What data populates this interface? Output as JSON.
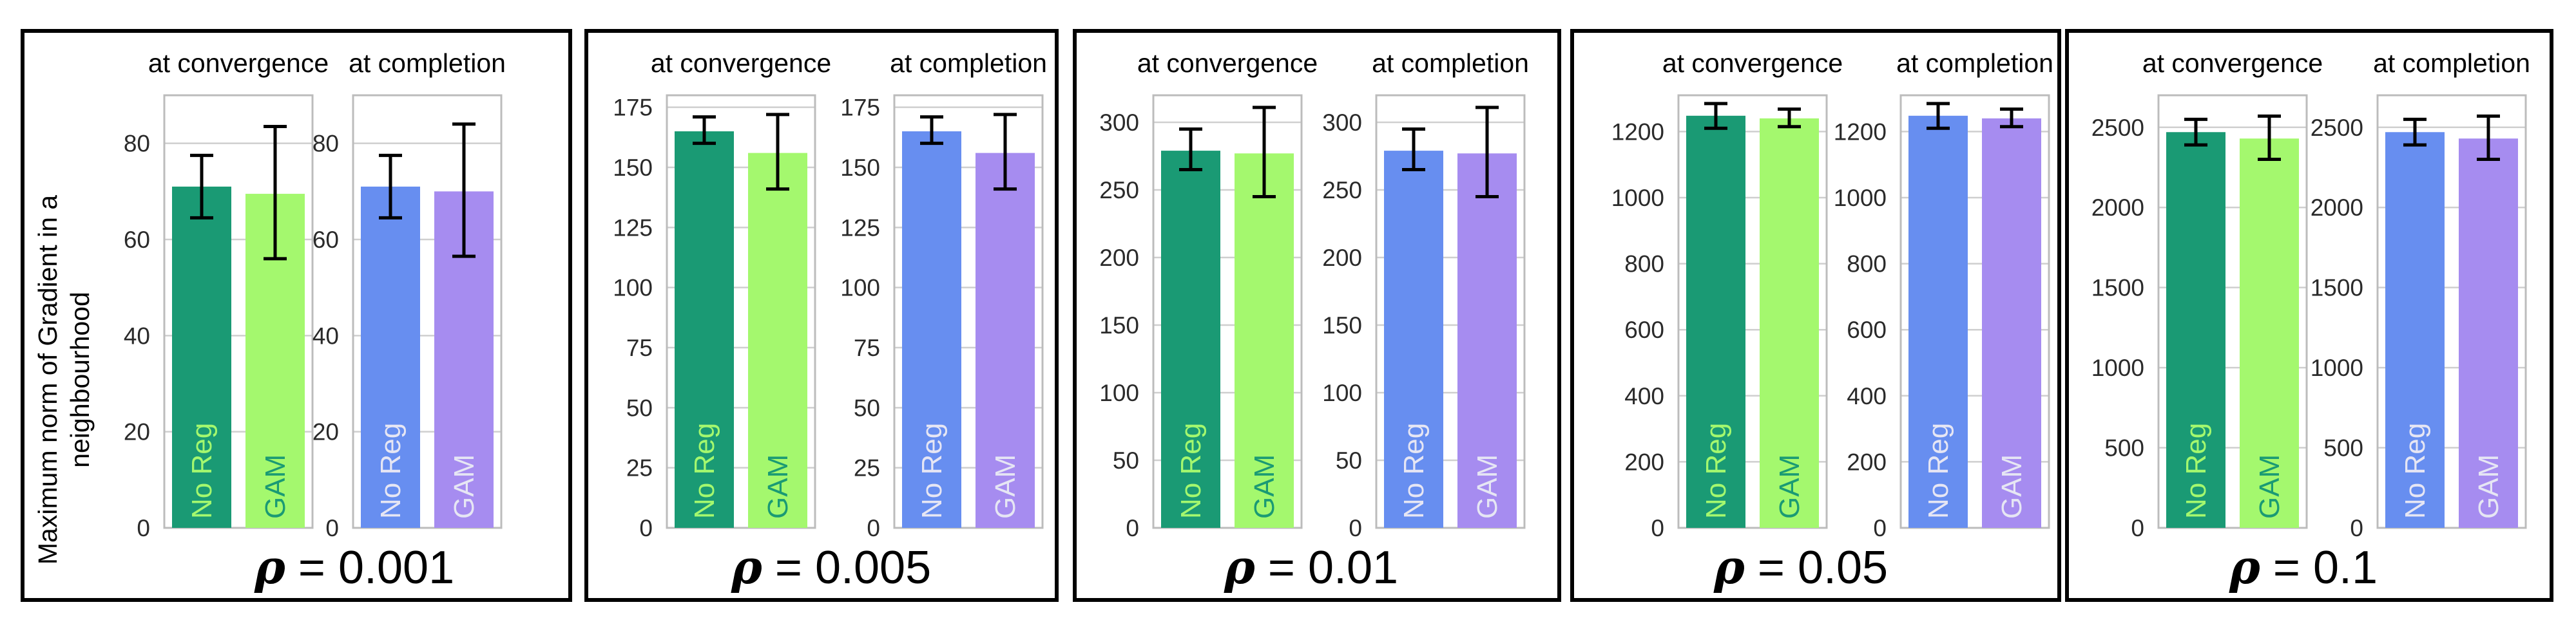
{
  "chart_data": {
    "type": "bar",
    "ylabel_line1": "Maximum norm of Gradient in a",
    "ylabel_line2": "neighbourhood",
    "rho_symbol": "ρ",
    "rho_prefix": " = ",
    "subplot_titles": [
      "at convergence",
      "at completion"
    ],
    "categories": [
      "No Reg",
      "GAM"
    ],
    "colors": {
      "convergence_no_reg": "#1a9a74",
      "convergence_gam": "#a4f86e",
      "completion_no_reg": "#678ef0",
      "completion_gam": "#a68cf0",
      "label_on_dark_green": "#a4f86e",
      "label_on_light_green": "#1a9a74",
      "label_on_blue": "#e6e6f4",
      "label_on_purple": "#e6e6f4"
    },
    "panels": [
      {
        "rho_value": "0.001",
        "ylim": [
          0,
          90
        ],
        "yticks": [
          "0",
          "20",
          "40",
          "60",
          "80"
        ],
        "ytick_values": [
          0,
          20,
          40,
          60,
          80
        ],
        "convergence": {
          "values": [
            71,
            69.5
          ],
          "errors": [
            [
              64.5,
              77.5
            ],
            [
              56,
              83.5
            ]
          ]
        },
        "completion": {
          "values": [
            71,
            70
          ],
          "errors": [
            [
              64.5,
              77.5
            ],
            [
              56.5,
              84
            ]
          ]
        }
      },
      {
        "rho_value": "0.005",
        "ylim": [
          0,
          180
        ],
        "yticks": [
          "0",
          "25",
          "50",
          "75",
          "100",
          "125",
          "150",
          "175"
        ],
        "ytick_values": [
          0,
          25,
          50,
          75,
          100,
          125,
          150,
          175
        ],
        "convergence": {
          "values": [
            165,
            156
          ],
          "errors": [
            [
              160,
              171
            ],
            [
              141,
              172
            ]
          ]
        },
        "completion": {
          "values": [
            165,
            156
          ],
          "errors": [
            [
              160,
              171
            ],
            [
              141,
              172
            ]
          ]
        }
      },
      {
        "rho_value": "0.01",
        "ylim": [
          0,
          320
        ],
        "yticks": [
          "0",
          "50",
          "100",
          "150",
          "200",
          "250",
          "300"
        ],
        "ytick_values": [
          0,
          50,
          100,
          150,
          200,
          250,
          300
        ],
        "convergence": {
          "values": [
            279,
            277
          ],
          "errors": [
            [
              265,
              295
            ],
            [
              245,
              311
            ]
          ]
        },
        "completion": {
          "values": [
            279,
            277
          ],
          "errors": [
            [
              265,
              295
            ],
            [
              245,
              311
            ]
          ]
        }
      },
      {
        "rho_value": "0.05",
        "ylim": [
          0,
          1310
        ],
        "yticks": [
          "0",
          "200",
          "400",
          "600",
          "800",
          "1000",
          "1200"
        ],
        "ytick_values": [
          0,
          200,
          400,
          600,
          800,
          1000,
          1200
        ],
        "convergence": {
          "values": [
            1248,
            1240
          ],
          "errors": [
            [
              1210,
              1285
            ],
            [
              1215,
              1268
            ]
          ]
        },
        "completion": {
          "values": [
            1248,
            1240
          ],
          "errors": [
            [
              1210,
              1285
            ],
            [
              1215,
              1268
            ]
          ]
        }
      },
      {
        "rho_value": "0.1",
        "ylim": [
          0,
          2700
        ],
        "yticks": [
          "0",
          "500",
          "1000",
          "1500",
          "2000",
          "2500"
        ],
        "ytick_values": [
          0,
          500,
          1000,
          1500,
          2000,
          2500
        ],
        "convergence": {
          "values": [
            2470,
            2430
          ],
          "errors": [
            [
              2390,
              2550
            ],
            [
              2300,
              2570
            ]
          ]
        },
        "completion": {
          "values": [
            2470,
            2430
          ],
          "errors": [
            [
              2390,
              2550
            ],
            [
              2300,
              2570
            ]
          ]
        }
      }
    ]
  }
}
